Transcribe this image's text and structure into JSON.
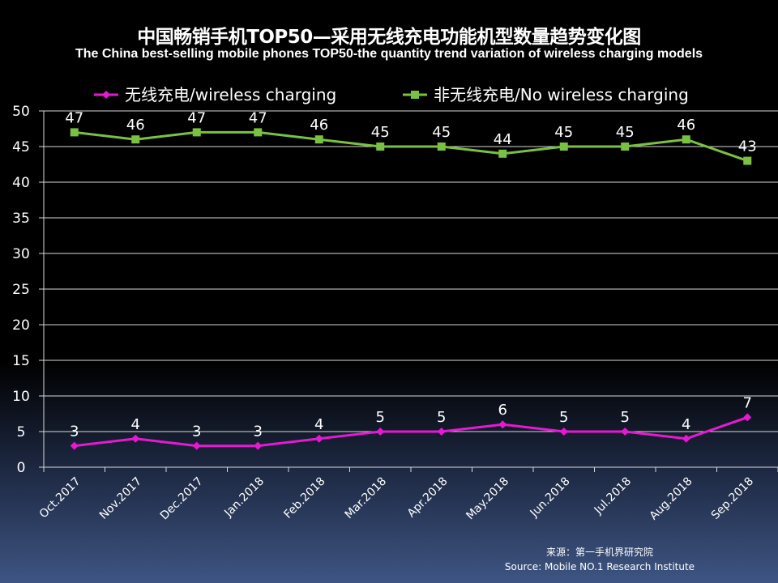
{
  "chart_data": {
    "type": "line",
    "title": "中国畅销手机TOP50—采用无线充电功能机型数量趋势变化图",
    "subtitle": "The China best-selling mobile phones TOP50-the quantity trend variation of wireless charging models",
    "categories": [
      "Oct.2017",
      "Nov.2017",
      "Dec.2017",
      "Jan.2018",
      "Feb.2018",
      "Mar.2018",
      "Apr.2018",
      "May.2018",
      "Jun.2018",
      "Jul.2018",
      "Aug.2018",
      "Sep.2018"
    ],
    "series": [
      {
        "name": "无线充电/wireless charging",
        "color": "#e619d3",
        "marker": "diamond",
        "values": [
          3,
          4,
          3,
          3,
          4,
          5,
          5,
          6,
          5,
          5,
          4,
          7
        ]
      },
      {
        "name": "非无线充电/No wireless charging",
        "color": "#7ac142",
        "marker": "square",
        "values": [
          47,
          46,
          47,
          47,
          46,
          45,
          45,
          44,
          45,
          45,
          46,
          43
        ]
      }
    ],
    "ylim": [
      0,
      50
    ],
    "yticks": [
      0,
      5,
      10,
      15,
      20,
      25,
      30,
      35,
      40,
      45,
      50
    ],
    "grid": true,
    "legend": "top",
    "xlabel": "",
    "ylabel": ""
  },
  "source": {
    "cn": "来源：第一手机界研究院",
    "en": "Source: Mobile NO.1 Research Institute"
  }
}
